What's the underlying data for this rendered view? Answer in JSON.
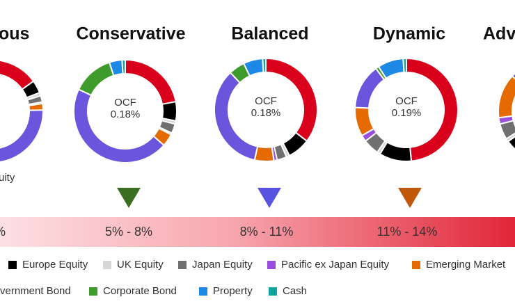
{
  "legend": [
    {
      "label": null,
      "color": "#d9001b"
    },
    {
      "label": "Europe Equity",
      "color": "#000000"
    },
    {
      "label": "UK Equity",
      "color": "#d6d6d6"
    },
    {
      "label": "Japan Equity",
      "color": "#707070"
    },
    {
      "label": "Pacific ex Japan Equity",
      "color": "#9a4ee0"
    },
    {
      "label": "Emerging Market",
      "color": "#e56b00"
    },
    {
      "label": "vernment Bond",
      "color": "#6a55dc"
    },
    {
      "label": "Corporate Bond",
      "color": "#3f9c2c"
    },
    {
      "label": "Property",
      "color": "#1e88e5"
    },
    {
      "label": "Cash",
      "color": "#12a39a"
    }
  ],
  "chart_data": [
    {
      "type": "pie",
      "title": "ous",
      "annotation": "uity",
      "values": [
        15,
        4,
        1,
        2,
        0.5,
        2,
        60,
        10,
        4,
        1
      ]
    },
    {
      "type": "pie",
      "title": "Conservative",
      "center_label": "OCF",
      "center_value": "0.18%",
      "marker_color": "#3b6e22",
      "values": [
        22,
        6,
        1,
        3,
        0.5,
        4,
        45.5,
        13,
        4,
        1
      ]
    },
    {
      "type": "pie",
      "title": "Balanced",
      "center_label": "OCF",
      "center_value": "0.18%",
      "marker_color": "#5a52e0",
      "values": [
        35,
        7,
        1,
        3,
        1,
        6,
        34,
        5,
        6,
        1
      ]
    },
    {
      "type": "pie",
      "title": "Dynamic",
      "center_label": "OCF",
      "center_value": "0.19%",
      "marker_color": "#c0580c",
      "values": [
        48,
        10,
        1,
        5,
        2,
        9,
        14,
        1,
        8,
        1
      ]
    },
    {
      "type": "pie",
      "title": "Adv",
      "values": [
        55,
        10,
        1,
        5,
        2,
        14,
        3,
        0,
        8,
        2
      ]
    }
  ],
  "risk_bands": [
    "%",
    "5% - 8%",
    "8% - 11%",
    "11% - 14%"
  ]
}
